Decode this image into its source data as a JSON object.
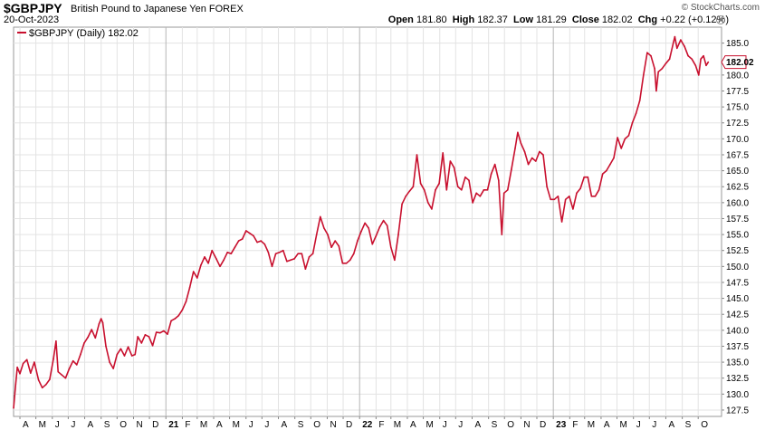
{
  "header": {
    "symbol": "$GBPJPY",
    "name": "British Pound to Japanese Yen",
    "exchange": "FOREX",
    "date": "20-Oct-2023",
    "brand": "© StockCharts.com",
    "open_label": "Open",
    "open": "181.80",
    "high_label": "High",
    "high": "182.37",
    "low_label": "Low",
    "low": "181.29",
    "close_label": "Close",
    "close": "182.02",
    "chg_label": "Chg",
    "chg": "+0.22 (+0.12%)",
    "chg_icon": "triangle-up-icon"
  },
  "legend": {
    "text": "$GBPJPY (Daily) 182.02",
    "color": "#c8102e"
  },
  "last_value_label": "182.02",
  "chart_data": {
    "type": "line",
    "series": [
      {
        "name": "$GBPJPY (Daily)",
        "color": "#c8102e",
        "points": [
          [
            "2020-03-20",
            127.8
          ],
          [
            "2020-03-24",
            131.5
          ],
          [
            "2020-03-27",
            134.2
          ],
          [
            "2020-04-01",
            133.2
          ],
          [
            "2020-04-07",
            134.8
          ],
          [
            "2020-04-14",
            135.4
          ],
          [
            "2020-04-21",
            133.3
          ],
          [
            "2020-04-28",
            135.0
          ],
          [
            "2020-05-06",
            132.2
          ],
          [
            "2020-05-13",
            131.0
          ],
          [
            "2020-05-20",
            131.5
          ],
          [
            "2020-05-27",
            132.3
          ],
          [
            "2020-06-03",
            135.5
          ],
          [
            "2020-06-08",
            138.3
          ],
          [
            "2020-06-12",
            133.5
          ],
          [
            "2020-06-19",
            133.0
          ],
          [
            "2020-06-26",
            132.5
          ],
          [
            "2020-07-03",
            134.0
          ],
          [
            "2020-07-10",
            135.2
          ],
          [
            "2020-07-17",
            134.6
          ],
          [
            "2020-07-24",
            136.2
          ],
          [
            "2020-07-31",
            138.0
          ],
          [
            "2020-08-07",
            138.9
          ],
          [
            "2020-08-14",
            140.1
          ],
          [
            "2020-08-21",
            138.8
          ],
          [
            "2020-08-28",
            141.0
          ],
          [
            "2020-09-01",
            141.8
          ],
          [
            "2020-09-04",
            141.2
          ],
          [
            "2020-09-10",
            137.5
          ],
          [
            "2020-09-17",
            135.0
          ],
          [
            "2020-09-24",
            134.0
          ],
          [
            "2020-10-01",
            136.2
          ],
          [
            "2020-10-08",
            137.1
          ],
          [
            "2020-10-15",
            136.0
          ],
          [
            "2020-10-22",
            137.4
          ],
          [
            "2020-10-29",
            136.0
          ],
          [
            "2020-11-04",
            136.2
          ],
          [
            "2020-11-09",
            139.0
          ],
          [
            "2020-11-16",
            138.0
          ],
          [
            "2020-11-23",
            139.3
          ],
          [
            "2020-11-30",
            139.0
          ],
          [
            "2020-12-07",
            137.6
          ],
          [
            "2020-12-14",
            139.7
          ],
          [
            "2020-12-21",
            139.6
          ],
          [
            "2020-12-28",
            139.9
          ],
          [
            "2021-01-04",
            139.4
          ],
          [
            "2021-01-11",
            141.5
          ],
          [
            "2021-01-18",
            141.8
          ],
          [
            "2021-01-25",
            142.3
          ],
          [
            "2021-02-01",
            143.2
          ],
          [
            "2021-02-08",
            144.5
          ],
          [
            "2021-02-15",
            146.7
          ],
          [
            "2021-02-22",
            149.2
          ],
          [
            "2021-03-01",
            148.2
          ],
          [
            "2021-03-08",
            150.2
          ],
          [
            "2021-03-15",
            151.5
          ],
          [
            "2021-03-22",
            150.5
          ],
          [
            "2021-03-29",
            152.5
          ],
          [
            "2021-04-06",
            151.2
          ],
          [
            "2021-04-13",
            150.0
          ],
          [
            "2021-04-20",
            151.0
          ],
          [
            "2021-04-27",
            152.2
          ],
          [
            "2021-05-04",
            152.0
          ],
          [
            "2021-05-11",
            153.0
          ],
          [
            "2021-05-18",
            154.0
          ],
          [
            "2021-05-25",
            154.3
          ],
          [
            "2021-06-01",
            155.6
          ],
          [
            "2021-06-08",
            155.2
          ],
          [
            "2021-06-15",
            154.8
          ],
          [
            "2021-06-22",
            153.8
          ],
          [
            "2021-06-29",
            154.0
          ],
          [
            "2021-07-06",
            153.5
          ],
          [
            "2021-07-13",
            152.2
          ],
          [
            "2021-07-20",
            150.0
          ],
          [
            "2021-07-27",
            152.0
          ],
          [
            "2021-08-03",
            152.2
          ],
          [
            "2021-08-10",
            152.5
          ],
          [
            "2021-08-17",
            150.8
          ],
          [
            "2021-08-24",
            151.0
          ],
          [
            "2021-08-31",
            151.2
          ],
          [
            "2021-09-07",
            152.0
          ],
          [
            "2021-09-14",
            152.0
          ],
          [
            "2021-09-21",
            149.6
          ],
          [
            "2021-09-28",
            151.5
          ],
          [
            "2021-10-05",
            152.0
          ],
          [
            "2021-10-12",
            155.0
          ],
          [
            "2021-10-19",
            157.8
          ],
          [
            "2021-10-26",
            156.0
          ],
          [
            "2021-11-02",
            155.0
          ],
          [
            "2021-11-09",
            153.0
          ],
          [
            "2021-11-16",
            154.0
          ],
          [
            "2021-11-23",
            153.2
          ],
          [
            "2021-11-30",
            150.5
          ],
          [
            "2021-12-07",
            150.5
          ],
          [
            "2021-12-14",
            151.0
          ],
          [
            "2021-12-21",
            152.0
          ],
          [
            "2021-12-28",
            154.0
          ],
          [
            "2022-01-04",
            155.5
          ],
          [
            "2022-01-11",
            156.8
          ],
          [
            "2022-01-18",
            156.0
          ],
          [
            "2022-01-25",
            153.5
          ],
          [
            "2022-02-01",
            154.8
          ],
          [
            "2022-02-08",
            156.2
          ],
          [
            "2022-02-15",
            157.2
          ],
          [
            "2022-02-22",
            156.4
          ],
          [
            "2022-03-01",
            153.0
          ],
          [
            "2022-03-08",
            151.0
          ],
          [
            "2022-03-15",
            155.0
          ],
          [
            "2022-03-22",
            159.8
          ],
          [
            "2022-03-29",
            161.0
          ],
          [
            "2022-04-05",
            161.8
          ],
          [
            "2022-04-12",
            162.5
          ],
          [
            "2022-04-19",
            167.5
          ],
          [
            "2022-04-26",
            163.0
          ],
          [
            "2022-05-03",
            162.0
          ],
          [
            "2022-05-10",
            160.0
          ],
          [
            "2022-05-17",
            159.0
          ],
          [
            "2022-05-24",
            162.0
          ],
          [
            "2022-05-31",
            163.0
          ],
          [
            "2022-06-07",
            167.8
          ],
          [
            "2022-06-14",
            162.0
          ],
          [
            "2022-06-21",
            166.5
          ],
          [
            "2022-06-28",
            165.5
          ],
          [
            "2022-07-05",
            162.5
          ],
          [
            "2022-07-12",
            162.0
          ],
          [
            "2022-07-19",
            164.0
          ],
          [
            "2022-07-26",
            163.5
          ],
          [
            "2022-08-02",
            160.0
          ],
          [
            "2022-08-09",
            161.5
          ],
          [
            "2022-08-16",
            161.0
          ],
          [
            "2022-08-23",
            162.0
          ],
          [
            "2022-08-30",
            162.0
          ],
          [
            "2022-09-06",
            164.5
          ],
          [
            "2022-09-13",
            166.0
          ],
          [
            "2022-09-20",
            163.5
          ],
          [
            "2022-09-26",
            155.0
          ],
          [
            "2022-09-30",
            161.5
          ],
          [
            "2022-10-07",
            162.0
          ],
          [
            "2022-10-14",
            165.2
          ],
          [
            "2022-10-21",
            168.5
          ],
          [
            "2022-10-26",
            171.0
          ],
          [
            "2022-11-01",
            169.3
          ],
          [
            "2022-11-08",
            168.0
          ],
          [
            "2022-11-15",
            166.0
          ],
          [
            "2022-11-22",
            167.0
          ],
          [
            "2022-11-29",
            166.5
          ],
          [
            "2022-12-06",
            168.0
          ],
          [
            "2022-12-13",
            167.5
          ],
          [
            "2022-12-20",
            162.5
          ],
          [
            "2022-12-27",
            160.5
          ],
          [
            "2023-01-03",
            160.5
          ],
          [
            "2023-01-10",
            161.0
          ],
          [
            "2023-01-17",
            157.0
          ],
          [
            "2023-01-24",
            160.5
          ],
          [
            "2023-01-31",
            161.0
          ],
          [
            "2023-02-07",
            159.0
          ],
          [
            "2023-02-14",
            161.5
          ],
          [
            "2023-02-21",
            162.2
          ],
          [
            "2023-02-28",
            164.0
          ],
          [
            "2023-03-07",
            164.0
          ],
          [
            "2023-03-14",
            161.0
          ],
          [
            "2023-03-21",
            161.0
          ],
          [
            "2023-03-28",
            162.0
          ],
          [
            "2023-04-04",
            164.5
          ],
          [
            "2023-04-11",
            165.0
          ],
          [
            "2023-04-18",
            166.0
          ],
          [
            "2023-04-25",
            167.0
          ],
          [
            "2023-05-02",
            170.2
          ],
          [
            "2023-05-09",
            168.5
          ],
          [
            "2023-05-16",
            170.0
          ],
          [
            "2023-05-23",
            170.5
          ],
          [
            "2023-05-30",
            172.5
          ],
          [
            "2023-06-06",
            174.0
          ],
          [
            "2023-06-13",
            176.0
          ],
          [
            "2023-06-20",
            180.0
          ],
          [
            "2023-06-27",
            183.5
          ],
          [
            "2023-07-04",
            183.0
          ],
          [
            "2023-07-11",
            181.0
          ],
          [
            "2023-07-14",
            177.5
          ],
          [
            "2023-07-18",
            180.5
          ],
          [
            "2023-07-25",
            181.0
          ],
          [
            "2023-08-01",
            181.8
          ],
          [
            "2023-08-08",
            182.5
          ],
          [
            "2023-08-15",
            185.0
          ],
          [
            "2023-08-18",
            186.0
          ],
          [
            "2023-08-22",
            184.2
          ],
          [
            "2023-08-29",
            185.5
          ],
          [
            "2023-09-05",
            184.5
          ],
          [
            "2023-09-12",
            183.0
          ],
          [
            "2023-09-19",
            182.5
          ],
          [
            "2023-09-26",
            181.5
          ],
          [
            "2023-10-02",
            180.0
          ],
          [
            "2023-10-06",
            182.5
          ],
          [
            "2023-10-11",
            183.0
          ],
          [
            "2023-10-16",
            181.5
          ],
          [
            "2023-10-20",
            182.02
          ]
        ]
      }
    ],
    "x_range": [
      "2020-03-20",
      "2023-11-14"
    ],
    "ylim": [
      126.5,
      187.5
    ],
    "y_scale": "linear",
    "y_ticks": [
      127.5,
      130.0,
      132.5,
      135.0,
      137.5,
      140.0,
      142.5,
      145.0,
      147.5,
      150.0,
      152.5,
      155.0,
      157.5,
      160.0,
      162.5,
      165.0,
      167.5,
      170.0,
      172.5,
      175.0,
      177.5,
      180.0,
      185.0
    ],
    "y_tick_labels": [
      "127.5",
      "130.0",
      "132.5",
      "135.0",
      "137.5",
      "140.0",
      "142.5",
      "145.0",
      "147.5",
      "150.0",
      "152.5",
      "155.0",
      "157.5",
      "160.0",
      "162.5",
      "165.0",
      "167.5",
      "170.0",
      "172.5",
      "175.0",
      "177.5",
      "180.0",
      "185.0"
    ],
    "x_ticks": [
      {
        "date": "2020-04-01",
        "label": "A"
      },
      {
        "date": "2020-05-01",
        "label": "M"
      },
      {
        "date": "2020-06-01",
        "label": "J"
      },
      {
        "date": "2020-07-01",
        "label": "J"
      },
      {
        "date": "2020-08-01",
        "label": "A"
      },
      {
        "date": "2020-09-01",
        "label": "S"
      },
      {
        "date": "2020-10-01",
        "label": "O"
      },
      {
        "date": "2020-11-01",
        "label": "N"
      },
      {
        "date": "2020-12-01",
        "label": "D"
      },
      {
        "date": "2021-01-01",
        "label": "21",
        "major": true
      },
      {
        "date": "2021-02-01",
        "label": "F"
      },
      {
        "date": "2021-03-01",
        "label": "M"
      },
      {
        "date": "2021-04-01",
        "label": "A"
      },
      {
        "date": "2021-05-01",
        "label": "M"
      },
      {
        "date": "2021-06-01",
        "label": "J"
      },
      {
        "date": "2021-07-01",
        "label": "J"
      },
      {
        "date": "2021-08-01",
        "label": "A"
      },
      {
        "date": "2021-09-01",
        "label": "S"
      },
      {
        "date": "2021-10-01",
        "label": "O"
      },
      {
        "date": "2021-11-01",
        "label": "N"
      },
      {
        "date": "2021-12-01",
        "label": "D"
      },
      {
        "date": "2022-01-01",
        "label": "22",
        "major": true
      },
      {
        "date": "2022-02-01",
        "label": "F"
      },
      {
        "date": "2022-03-01",
        "label": "M"
      },
      {
        "date": "2022-04-01",
        "label": "A"
      },
      {
        "date": "2022-05-01",
        "label": "M"
      },
      {
        "date": "2022-06-01",
        "label": "J"
      },
      {
        "date": "2022-07-01",
        "label": "J"
      },
      {
        "date": "2022-08-01",
        "label": "A"
      },
      {
        "date": "2022-09-01",
        "label": "S"
      },
      {
        "date": "2022-10-01",
        "label": "O"
      },
      {
        "date": "2022-11-01",
        "label": "N"
      },
      {
        "date": "2022-12-01",
        "label": "D"
      },
      {
        "date": "2023-01-01",
        "label": "23",
        "major": true
      },
      {
        "date": "2023-02-01",
        "label": "F"
      },
      {
        "date": "2023-03-01",
        "label": "M"
      },
      {
        "date": "2023-04-01",
        "label": "A"
      },
      {
        "date": "2023-05-01",
        "label": "M"
      },
      {
        "date": "2023-06-01",
        "label": "J"
      },
      {
        "date": "2023-07-01",
        "label": "J"
      },
      {
        "date": "2023-08-01",
        "label": "A"
      },
      {
        "date": "2023-09-01",
        "label": "S"
      },
      {
        "date": "2023-10-01",
        "label": "O"
      }
    ],
    "grid": true,
    "legend_position": "top-left",
    "y_axis_side": "right"
  }
}
